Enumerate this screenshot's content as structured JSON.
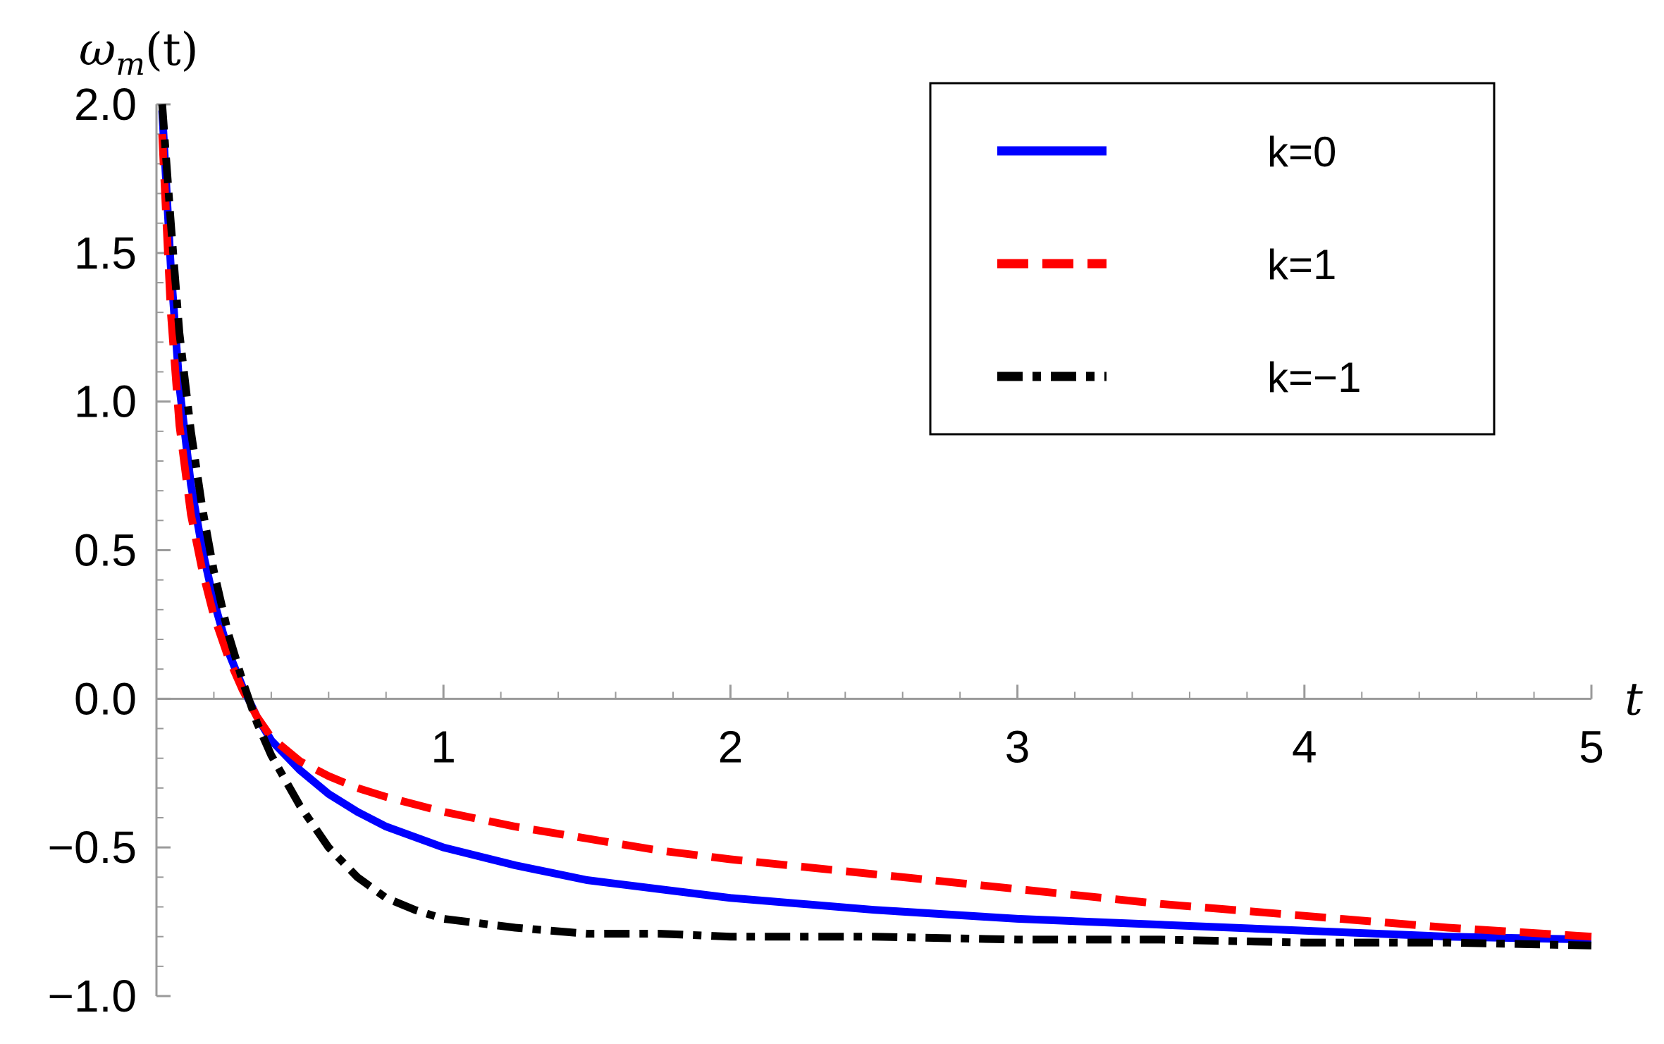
{
  "chart_data": {
    "type": "line",
    "title": "",
    "xlabel": "t",
    "ylabel": "ω_m(t)",
    "ylabel_main": "ω",
    "ylabel_sub": "m",
    "ylabel_tail": "(t)",
    "xlim": [
      0,
      5
    ],
    "ylim": [
      -1.0,
      2.0
    ],
    "x_ticks": [
      1,
      2,
      3,
      4,
      5
    ],
    "x_tick_labels": [
      "1",
      "2",
      "3",
      "4",
      "5"
    ],
    "y_ticks": [
      2.0,
      1.5,
      1.0,
      0.5,
      0.0,
      -0.5,
      -1.0
    ],
    "y_tick_labels": [
      "2.0",
      "1.5",
      "1.0",
      "0.5",
      "0.0",
      "−0.5",
      "−1.0"
    ],
    "grid": false,
    "legend_position": "top-right",
    "series": [
      {
        "name": "k=0",
        "color": "#0000ff",
        "style": "solid",
        "x": [
          0.02,
          0.05,
          0.08,
          0.12,
          0.16,
          0.2,
          0.25,
          0.3,
          0.35,
          0.4,
          0.5,
          0.6,
          0.7,
          0.8,
          1.0,
          1.25,
          1.5,
          1.75,
          2.0,
          2.5,
          3.0,
          3.5,
          4.0,
          4.5,
          5.0
        ],
        "y": [
          1.98,
          1.45,
          1.05,
          0.72,
          0.5,
          0.33,
          0.16,
          0.04,
          -0.06,
          -0.14,
          -0.24,
          -0.32,
          -0.38,
          -0.43,
          -0.5,
          -0.56,
          -0.61,
          -0.64,
          -0.67,
          -0.71,
          -0.74,
          -0.76,
          -0.78,
          -0.8,
          -0.81
        ]
      },
      {
        "name": "k=1",
        "color": "#ff0000",
        "style": "dashed",
        "x": [
          0.02,
          0.05,
          0.08,
          0.12,
          0.16,
          0.2,
          0.25,
          0.3,
          0.35,
          0.4,
          0.5,
          0.6,
          0.7,
          0.8,
          1.0,
          1.25,
          1.5,
          1.75,
          2.0,
          2.5,
          3.0,
          3.5,
          4.0,
          4.5,
          5.0
        ],
        "y": [
          1.9,
          1.3,
          0.92,
          0.62,
          0.43,
          0.28,
          0.14,
          0.03,
          -0.06,
          -0.13,
          -0.21,
          -0.26,
          -0.3,
          -0.33,
          -0.38,
          -0.43,
          -0.47,
          -0.51,
          -0.54,
          -0.59,
          -0.64,
          -0.69,
          -0.73,
          -0.77,
          -0.8
        ]
      },
      {
        "name": "k=−1",
        "color": "#000000",
        "style": "dashdot",
        "x": [
          0.02,
          0.05,
          0.08,
          0.12,
          0.16,
          0.2,
          0.25,
          0.3,
          0.35,
          0.4,
          0.5,
          0.6,
          0.7,
          0.8,
          0.9,
          1.0,
          1.25,
          1.5,
          1.75,
          2.0,
          2.5,
          3.0,
          3.5,
          4.0,
          4.5,
          5.0
        ],
        "y": [
          2.0,
          1.6,
          1.23,
          0.9,
          0.64,
          0.43,
          0.22,
          0.06,
          -0.08,
          -0.19,
          -0.36,
          -0.5,
          -0.6,
          -0.67,
          -0.71,
          -0.74,
          -0.77,
          -0.79,
          -0.79,
          -0.8,
          -0.8,
          -0.81,
          -0.81,
          -0.82,
          -0.82,
          -0.83
        ]
      }
    ]
  }
}
